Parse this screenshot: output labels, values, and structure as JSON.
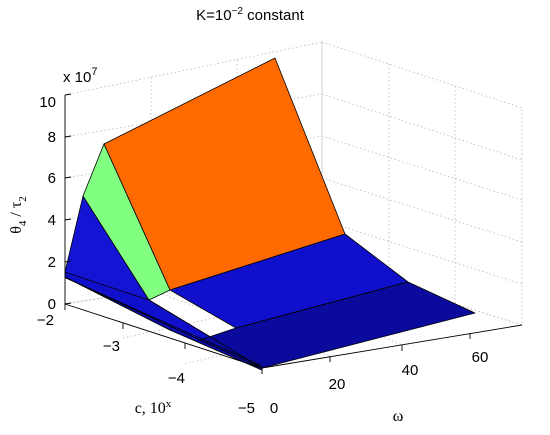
{
  "chart_data": {
    "type": "surface3d",
    "title": {
      "base": "K=10",
      "exp": "−2",
      "suffix": " constant"
    },
    "zlabel": {
      "main": "θ",
      "sub1": "4",
      "sep": " / τ",
      "sub2": "2"
    },
    "xlabel": {
      "base": "c, 10",
      "sup": "x"
    },
    "ylabel": "ω",
    "z_multiplier": {
      "base": "x 10",
      "exp": "7"
    },
    "xlim": [
      -5,
      -2
    ],
    "ylim": [
      0,
      60
    ],
    "zlim": [
      0,
      10
    ],
    "x_ticks": [
      "−2",
      "−3",
      "−4",
      "−5"
    ],
    "y_ticks": [
      "0",
      "20",
      "40",
      "60"
    ],
    "z_ticks": [
      "0",
      "2",
      "4",
      "6",
      "8",
      "10"
    ],
    "grid": true,
    "patches": [
      {
        "name": "high-plateau",
        "color": "#ff6a00",
        "corners": [
          [
            -2,
            35,
            8
          ],
          [
            -2,
            60,
            10
          ],
          [
            -3,
            60,
            3.5
          ],
          [
            -3,
            35,
            0.7
          ]
        ]
      },
      {
        "name": "ridge-slope",
        "color": "#80ff80",
        "corners": [
          [
            -2,
            35,
            8
          ],
          [
            -3,
            35,
            0.7
          ],
          [
            -2.5,
            35,
            0.05
          ],
          [
            -1.7,
            35,
            5.3
          ]
        ]
      },
      {
        "name": "front-slope",
        "color": "#1414d4",
        "corners": [
          [
            -1.7,
            35,
            5.3
          ],
          [
            -2.5,
            35,
            0.05
          ],
          [
            -3.3,
            35,
            0
          ],
          [
            -2.1,
            35,
            1.4
          ]
        ]
      },
      {
        "name": "upper-floor",
        "color": "#1010cc",
        "corners": [
          [
            -3,
            35,
            0.7
          ],
          [
            -3,
            60,
            3.5
          ],
          [
            -4,
            60,
            1.2
          ],
          [
            -4,
            35,
            0.3
          ]
        ]
      },
      {
        "name": "lower-floor",
        "color": "#0a0a9c",
        "corners": [
          [
            -4,
            35,
            0.3
          ],
          [
            -4,
            60,
            1.2
          ],
          [
            -5,
            60,
            0.2
          ],
          [
            -5,
            35,
            0.05
          ]
        ]
      }
    ],
    "strips": [
      {
        "name": "low-strip-a",
        "color": "#1010cc",
        "points": [
          [
            -2.1,
            35,
            1.4
          ],
          [
            -3.3,
            35,
            0
          ],
          [
            -5,
            35,
            0
          ],
          [
            -5,
            35,
            0.05
          ],
          [
            -3.5,
            35,
            0.1
          ]
        ]
      },
      {
        "name": "low-strip-b",
        "color": "#0c0cb0",
        "points": [
          [
            -2.1,
            35,
            1.4
          ],
          [
            -3.5,
            35,
            0.1
          ],
          [
            -5,
            35,
            0.05
          ],
          [
            -4,
            35,
            0.3
          ],
          [
            -3,
            35,
            0.7
          ],
          [
            -2.5,
            35,
            0.05
          ],
          [
            -3.3,
            35,
            0
          ]
        ]
      }
    ]
  }
}
